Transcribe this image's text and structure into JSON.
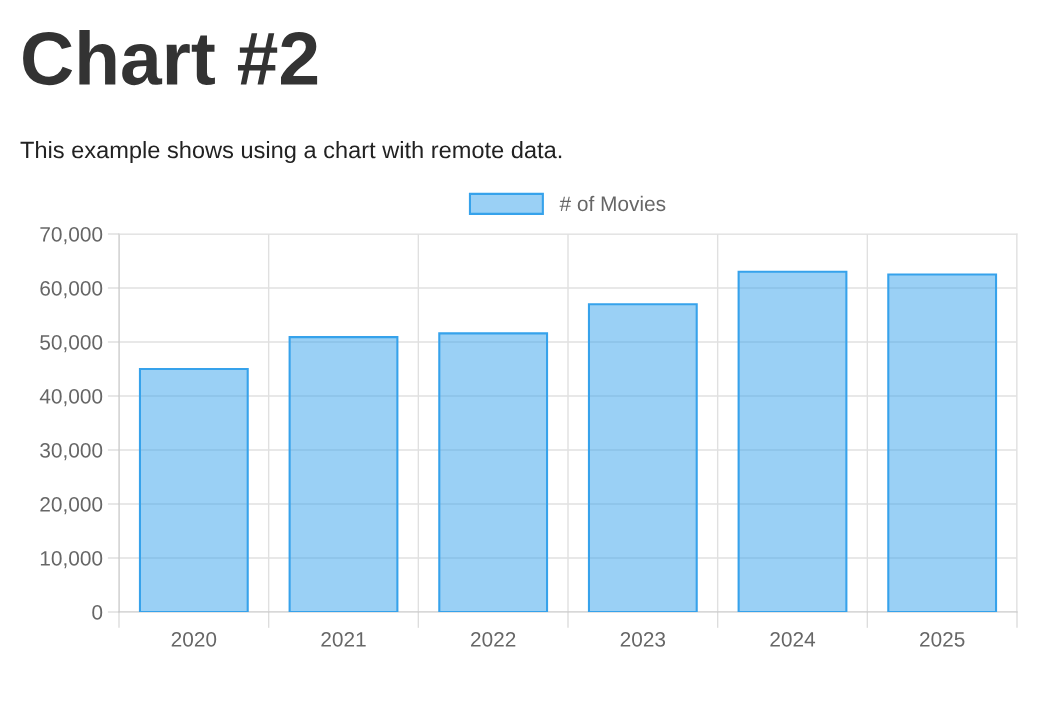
{
  "chart_data": {
    "type": "bar",
    "title": "Chart #2",
    "subtitle": "This example shows using a chart with remote data.",
    "categories": [
      "2020",
      "2021",
      "2022",
      "2023",
      "2024",
      "2025"
    ],
    "series": [
      {
        "name": "# of Movies",
        "color": "#36a2eb",
        "values": [
          45000,
          50900,
          51600,
          57000,
          63000,
          62500
        ]
      }
    ],
    "ylim": [
      0,
      70000
    ],
    "yticks": [
      {
        "value": 0,
        "label": "0"
      },
      {
        "value": 10000,
        "label": "10,000"
      },
      {
        "value": 20000,
        "label": "20,000"
      },
      {
        "value": 30000,
        "label": "30,000"
      },
      {
        "value": 40000,
        "label": "40,000"
      },
      {
        "value": 50000,
        "label": "50,000"
      },
      {
        "value": 60000,
        "label": "60,000"
      },
      {
        "value": 70000,
        "label": "70,000"
      }
    ],
    "grid": true,
    "legend": "top"
  }
}
